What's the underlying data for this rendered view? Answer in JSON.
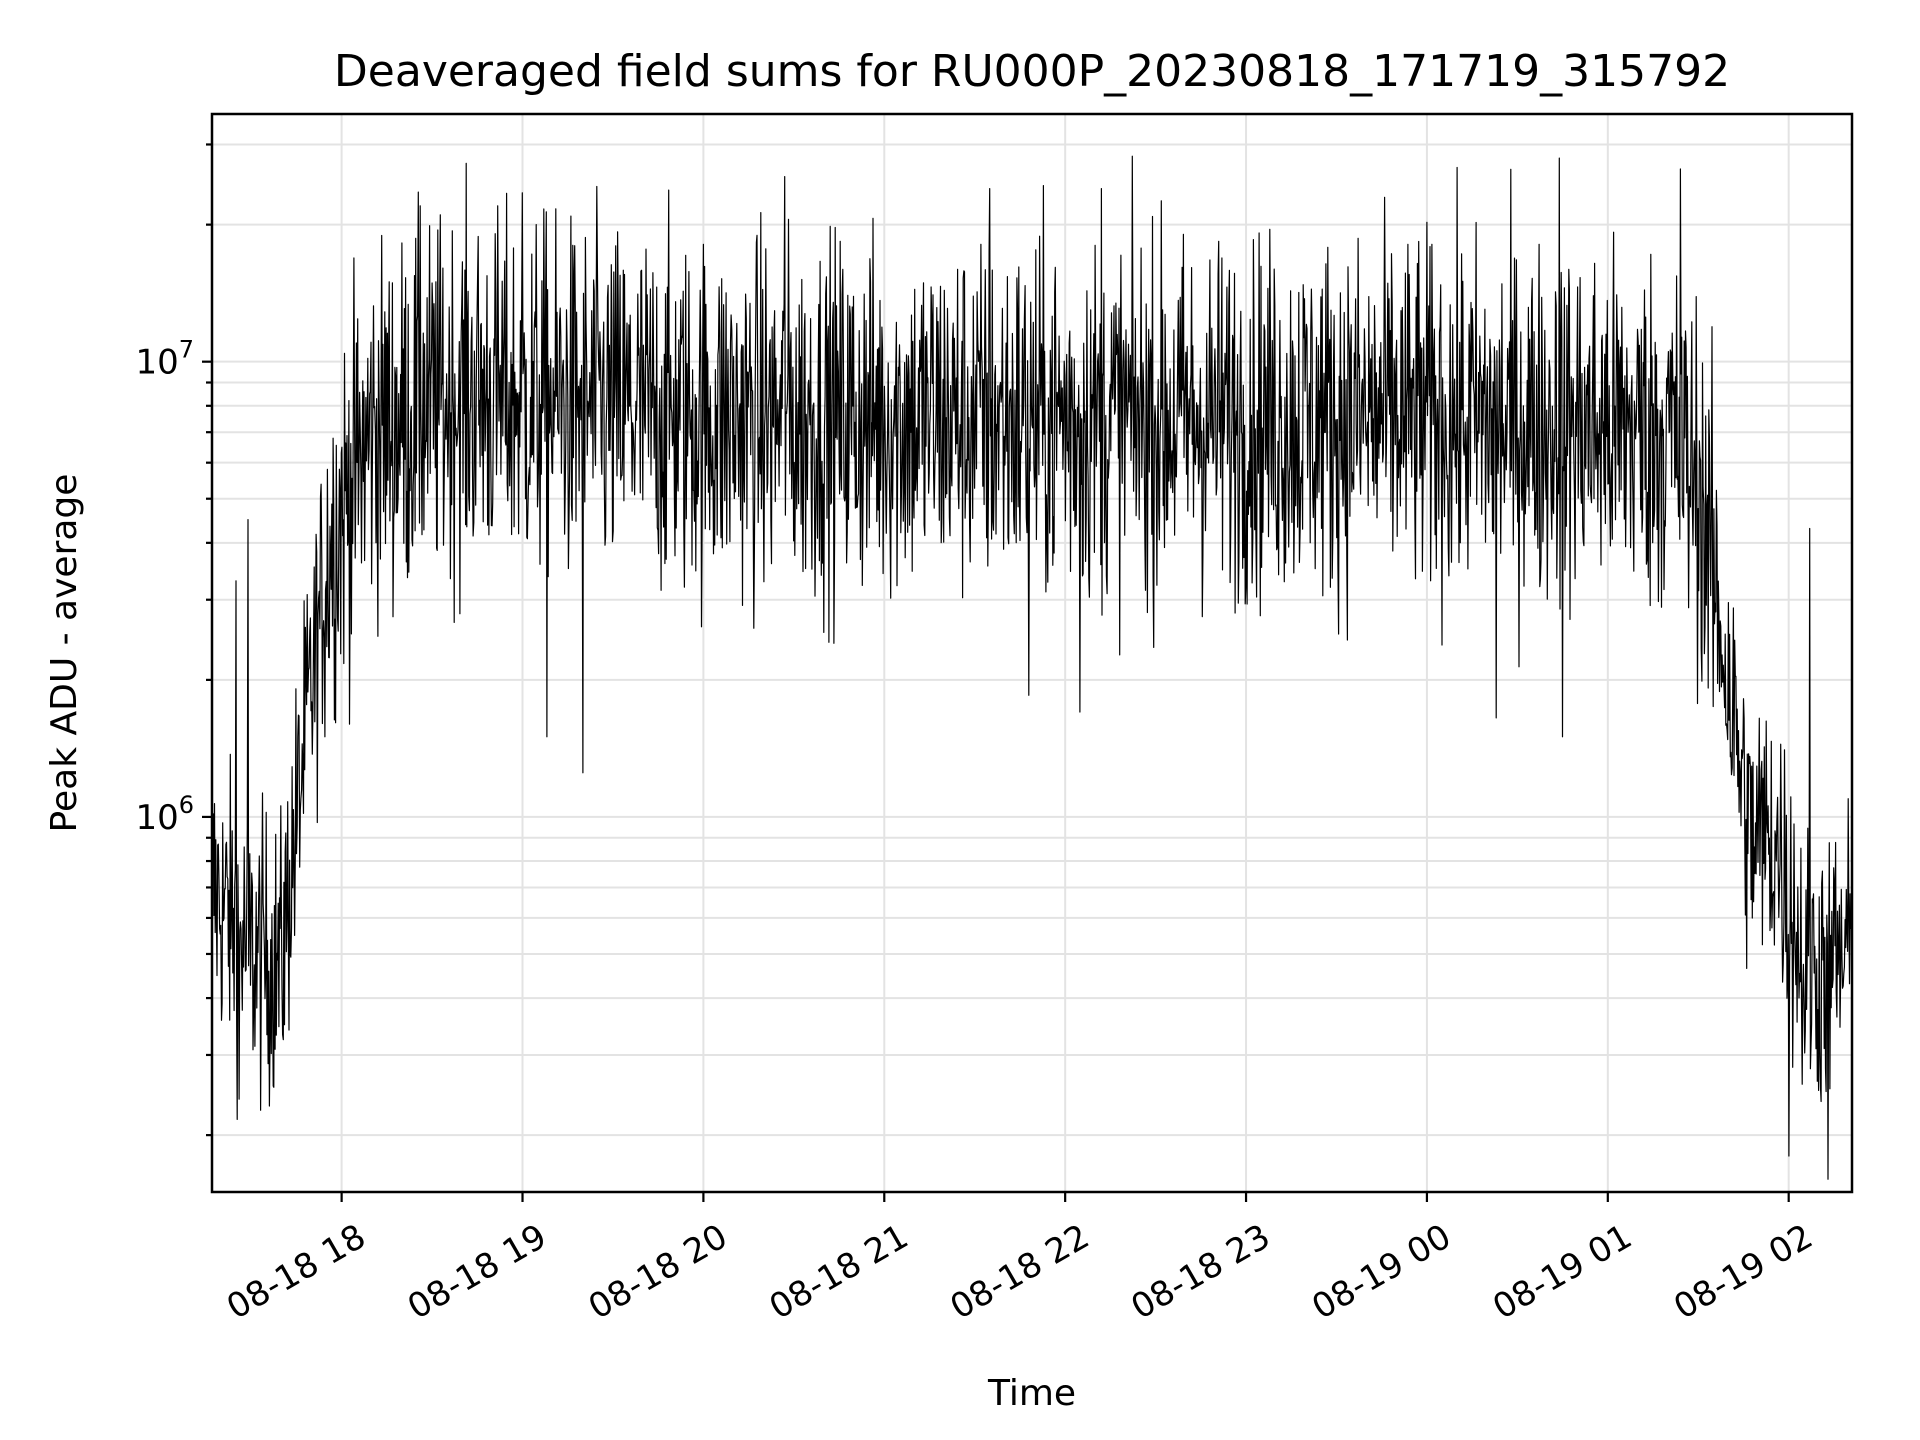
{
  "chart_data": {
    "type": "line",
    "title": "Deaveraged field sums for RU000P_20230818_171719_315792",
    "xlabel": "Time",
    "ylabel": "Peak ADU - average",
    "y_scale": "log",
    "ylim": [
      150000,
      35000000
    ],
    "xlim": [
      "2023-08-18 17:17",
      "2023-08-19 02:21"
    ],
    "grid": true,
    "x_ticks": [
      {
        "value": "2023-08-18 18:00",
        "label": "08-18 18"
      },
      {
        "value": "2023-08-18 19:00",
        "label": "08-18 19"
      },
      {
        "value": "2023-08-18 20:00",
        "label": "08-18 20"
      },
      {
        "value": "2023-08-18 21:00",
        "label": "08-18 21"
      },
      {
        "value": "2023-08-18 22:00",
        "label": "08-18 22"
      },
      {
        "value": "2023-08-18 23:00",
        "label": "08-18 23"
      },
      {
        "value": "2023-08-19 00:00",
        "label": "08-19 00"
      },
      {
        "value": "2023-08-19 01:00",
        "label": "08-19 01"
      },
      {
        "value": "2023-08-19 02:00",
        "label": "08-19 02"
      }
    ],
    "y_ticks": [
      {
        "value": 1000000,
        "base": "10",
        "exp": "6"
      },
      {
        "value": 10000000,
        "base": "10",
        "exp": "7"
      }
    ],
    "series": [
      {
        "color": "#000000",
        "trend": [
          {
            "x": "2023-08-18 17:17",
            "y": 700000
          },
          {
            "x": "2023-08-18 17:30",
            "y": 500000
          },
          {
            "x": "2023-08-18 17:40",
            "y": 480000
          },
          {
            "x": "2023-08-18 17:48",
            "y": 1500000
          },
          {
            "x": "2023-08-18 17:56",
            "y": 4000000
          },
          {
            "x": "2023-08-18 18:10",
            "y": 7000000
          },
          {
            "x": "2023-08-18 18:40",
            "y": 8500000
          },
          {
            "x": "2023-08-18 20:00",
            "y": 7500000
          },
          {
            "x": "2023-08-18 22:00",
            "y": 7500000
          },
          {
            "x": "2023-08-19 00:00",
            "y": 7500000
          },
          {
            "x": "2023-08-19 01:20",
            "y": 7000000
          },
          {
            "x": "2023-08-19 01:30",
            "y": 5500000
          },
          {
            "x": "2023-08-19 01:40",
            "y": 2000000
          },
          {
            "x": "2023-08-19 01:47",
            "y": 900000
          },
          {
            "x": "2023-08-19 01:55",
            "y": 900000
          },
          {
            "x": "2023-08-19 02:00",
            "y": 700000
          },
          {
            "x": "2023-08-19 02:05",
            "y": 450000
          },
          {
            "x": "2023-08-19 02:21",
            "y": 500000
          }
        ],
        "peaks": [
          {
            "x": "2023-08-18 17:29",
            "y": 4500000
          },
          {
            "x": "2023-08-18 17:25",
            "y": 3300000
          },
          {
            "x": "2023-08-18 18:26",
            "y": 22000000
          },
          {
            "x": "2023-08-18 19:00",
            "y": 23500000
          },
          {
            "x": "2023-08-18 20:27",
            "y": 25500000
          },
          {
            "x": "2023-08-18 21:35",
            "y": 24000000
          },
          {
            "x": "2023-08-18 22:12",
            "y": 24000000
          },
          {
            "x": "2023-08-19 00:44",
            "y": 28000000
          },
          {
            "x": "2023-08-19 01:24",
            "y": 26500000
          },
          {
            "x": "2023-08-19 02:07",
            "y": 4300000
          }
        ],
        "dips": [
          {
            "x": "2023-08-18 17:26",
            "y": 240000
          },
          {
            "x": "2023-08-18 19:20",
            "y": 1250000
          },
          {
            "x": "2023-08-18 19:08",
            "y": 1500000
          },
          {
            "x": "2023-08-18 21:48",
            "y": 1850000
          },
          {
            "x": "2023-08-18 22:05",
            "y": 1700000
          },
          {
            "x": "2023-08-19 00:23",
            "y": 1650000
          },
          {
            "x": "2023-08-19 00:45",
            "y": 1500000
          },
          {
            "x": "2023-08-19 02:00",
            "y": 180000
          },
          {
            "x": "2023-08-19 02:13",
            "y": 160000
          }
        ]
      }
    ]
  }
}
